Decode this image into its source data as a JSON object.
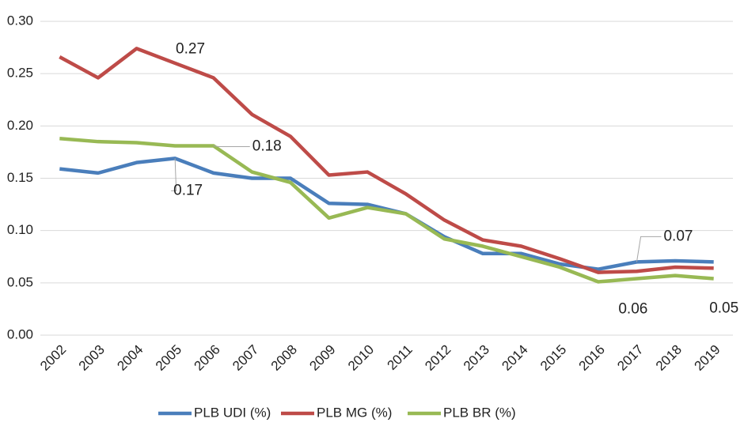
{
  "chart_data": {
    "type": "line",
    "categories": [
      "2002",
      "2003",
      "2004",
      "2005",
      "2006",
      "2007",
      "2008",
      "2009",
      "2010",
      "2011",
      "2012",
      "2013",
      "2014",
      "2015",
      "2016",
      "2017",
      "2018",
      "2019"
    ],
    "series": [
      {
        "name": "PLB UDI (%)",
        "color": "#4a7ebb",
        "values": [
          0.159,
          0.155,
          0.165,
          0.169,
          0.155,
          0.15,
          0.15,
          0.126,
          0.125,
          0.116,
          0.094,
          0.078,
          0.078,
          0.068,
          0.063,
          0.07,
          0.071,
          0.07
        ],
        "value_labels": [
          null,
          null,
          null,
          "0.17",
          null,
          null,
          null,
          null,
          null,
          null,
          null,
          null,
          null,
          null,
          null,
          "0.07",
          null,
          null
        ]
      },
      {
        "name": "PLB MG (%)",
        "color": "#be4b48",
        "values": [
          0.266,
          0.246,
          0.274,
          0.26,
          0.246,
          0.211,
          0.19,
          0.153,
          0.156,
          0.135,
          0.11,
          0.091,
          0.085,
          0.073,
          0.06,
          0.061,
          0.065,
          0.064
        ],
        "value_labels": [
          null,
          null,
          "0.27",
          null,
          null,
          null,
          null,
          null,
          null,
          null,
          null,
          null,
          null,
          null,
          "0.06",
          null,
          null,
          null
        ]
      },
      {
        "name": "PLB BR (%)",
        "color": "#98b954",
        "values": [
          0.188,
          0.185,
          0.184,
          0.181,
          0.181,
          0.156,
          0.146,
          0.112,
          0.122,
          0.116,
          0.092,
          0.085,
          0.075,
          0.065,
          0.051,
          0.054,
          0.057,
          0.054
        ],
        "value_labels": [
          null,
          null,
          null,
          null,
          "0.18",
          null,
          null,
          null,
          null,
          null,
          null,
          null,
          null,
          null,
          null,
          null,
          null,
          "0.05"
        ]
      }
    ],
    "ylim": [
      0,
      0.3
    ],
    "yticks": [
      {
        "value": 0,
        "label": "0.00"
      },
      0.05,
      {
        "value": 0.1,
        "label": "0.10"
      },
      0.15,
      {
        "value": 0.2,
        "label": "0.20"
      },
      0.25,
      {
        "value": 0.3,
        "label": "0.30"
      }
    ],
    "grid": true,
    "legend": "bottom"
  }
}
